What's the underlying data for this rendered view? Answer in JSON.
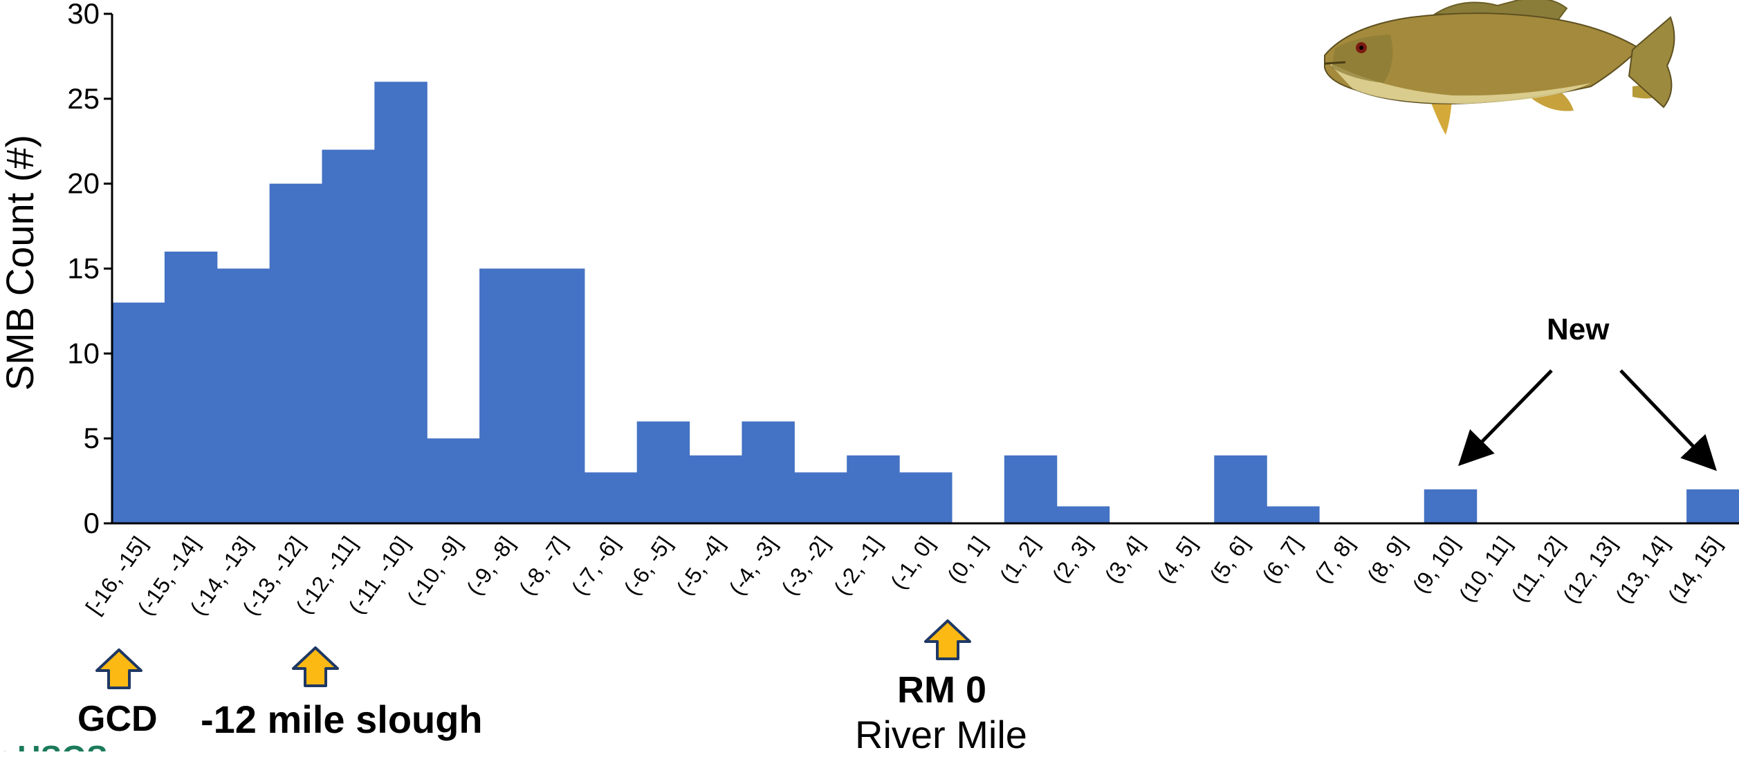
{
  "chart_data": {
    "type": "bar",
    "title": "",
    "xlabel": "River Mile",
    "ylabel": "SMB Count (#)",
    "ylim": [
      0,
      30
    ],
    "yticks": [
      0,
      5,
      10,
      15,
      20,
      25,
      30
    ],
    "grid": false,
    "categories": [
      "[-16, -15]",
      "(-15, -14]",
      "(-14, -13]",
      "(-13, -12]",
      "(-12, -11]",
      "(-11, -10]",
      "(-10, -9]",
      "(-9, -8]",
      "(-8, -7]",
      "(-7, -6]",
      "(-6, -5]",
      "(-5, -4]",
      "(-4, -3]",
      "(-3, -2]",
      "(-2, -1]",
      "(-1, 0]",
      "(0, 1]",
      "(1, 2]",
      "(2, 3]",
      "(3, 4]",
      "(4, 5]",
      "(5, 6]",
      "(6, 7]",
      "(7, 8]",
      "(8, 9]",
      "(9, 10]",
      "(10, 11]",
      "(11, 12]",
      "(12, 13]",
      "(13, 14]",
      "(14, 15]"
    ],
    "values": [
      13,
      16,
      15,
      20,
      22,
      26,
      5,
      15,
      15,
      3,
      6,
      4,
      6,
      3,
      4,
      3,
      0,
      4,
      1,
      0,
      0,
      4,
      1,
      0,
      0,
      2,
      0,
      0,
      0,
      0,
      2
    ],
    "bar_color": "#4472C4",
    "annotations": {
      "new_label": "New",
      "gcd_label": "GCD",
      "slough_label": "-12 mile slough",
      "rm0_label": "RM 0"
    },
    "marker_color": "#FDB913"
  },
  "logo_text": "≈USGS"
}
